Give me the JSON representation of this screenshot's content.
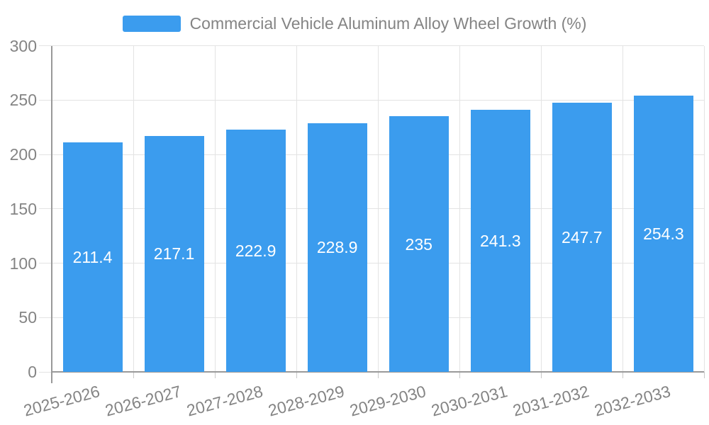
{
  "legend": {
    "label": "Commercial Vehicle Aluminum Alloy Wheel Growth (%)"
  },
  "chart_data": {
    "type": "bar",
    "title": "Commercial Vehicle Aluminum Alloy Wheel Growth (%)",
    "categories": [
      "2025-2026",
      "2026-2027",
      "2027-2028",
      "2028-2029",
      "2029-2030",
      "2030-2031",
      "2031-2032",
      "2032-2033"
    ],
    "series": [
      {
        "name": "Commercial Vehicle Aluminum Alloy Wheel Growth (%)",
        "values": [
          211.4,
          217.1,
          222.9,
          228.9,
          235,
          241.3,
          247.7,
          254.3
        ]
      }
    ],
    "value_labels": [
      "211.4",
      "217.1",
      "222.9",
      "228.9",
      "235",
      "241.3",
      "247.7",
      "254.3"
    ],
    "xlabel": "",
    "ylabel": "",
    "ylim": [
      0,
      300
    ],
    "y_ticks": [
      0,
      50,
      100,
      150,
      200,
      250,
      300
    ],
    "grid": "on",
    "legend_position": "top-center",
    "x_tick_rotation_deg": -15
  },
  "colors": {
    "bar": "#3B9CEE",
    "value_label": "#FFFFFF",
    "axis_label": "#848484",
    "legend_text": "#848484",
    "grid_line": "#E3E3E3",
    "axis_line": "#999999",
    "tick_mark": "#C9C9C9",
    "background": "#FFFFFF"
  }
}
